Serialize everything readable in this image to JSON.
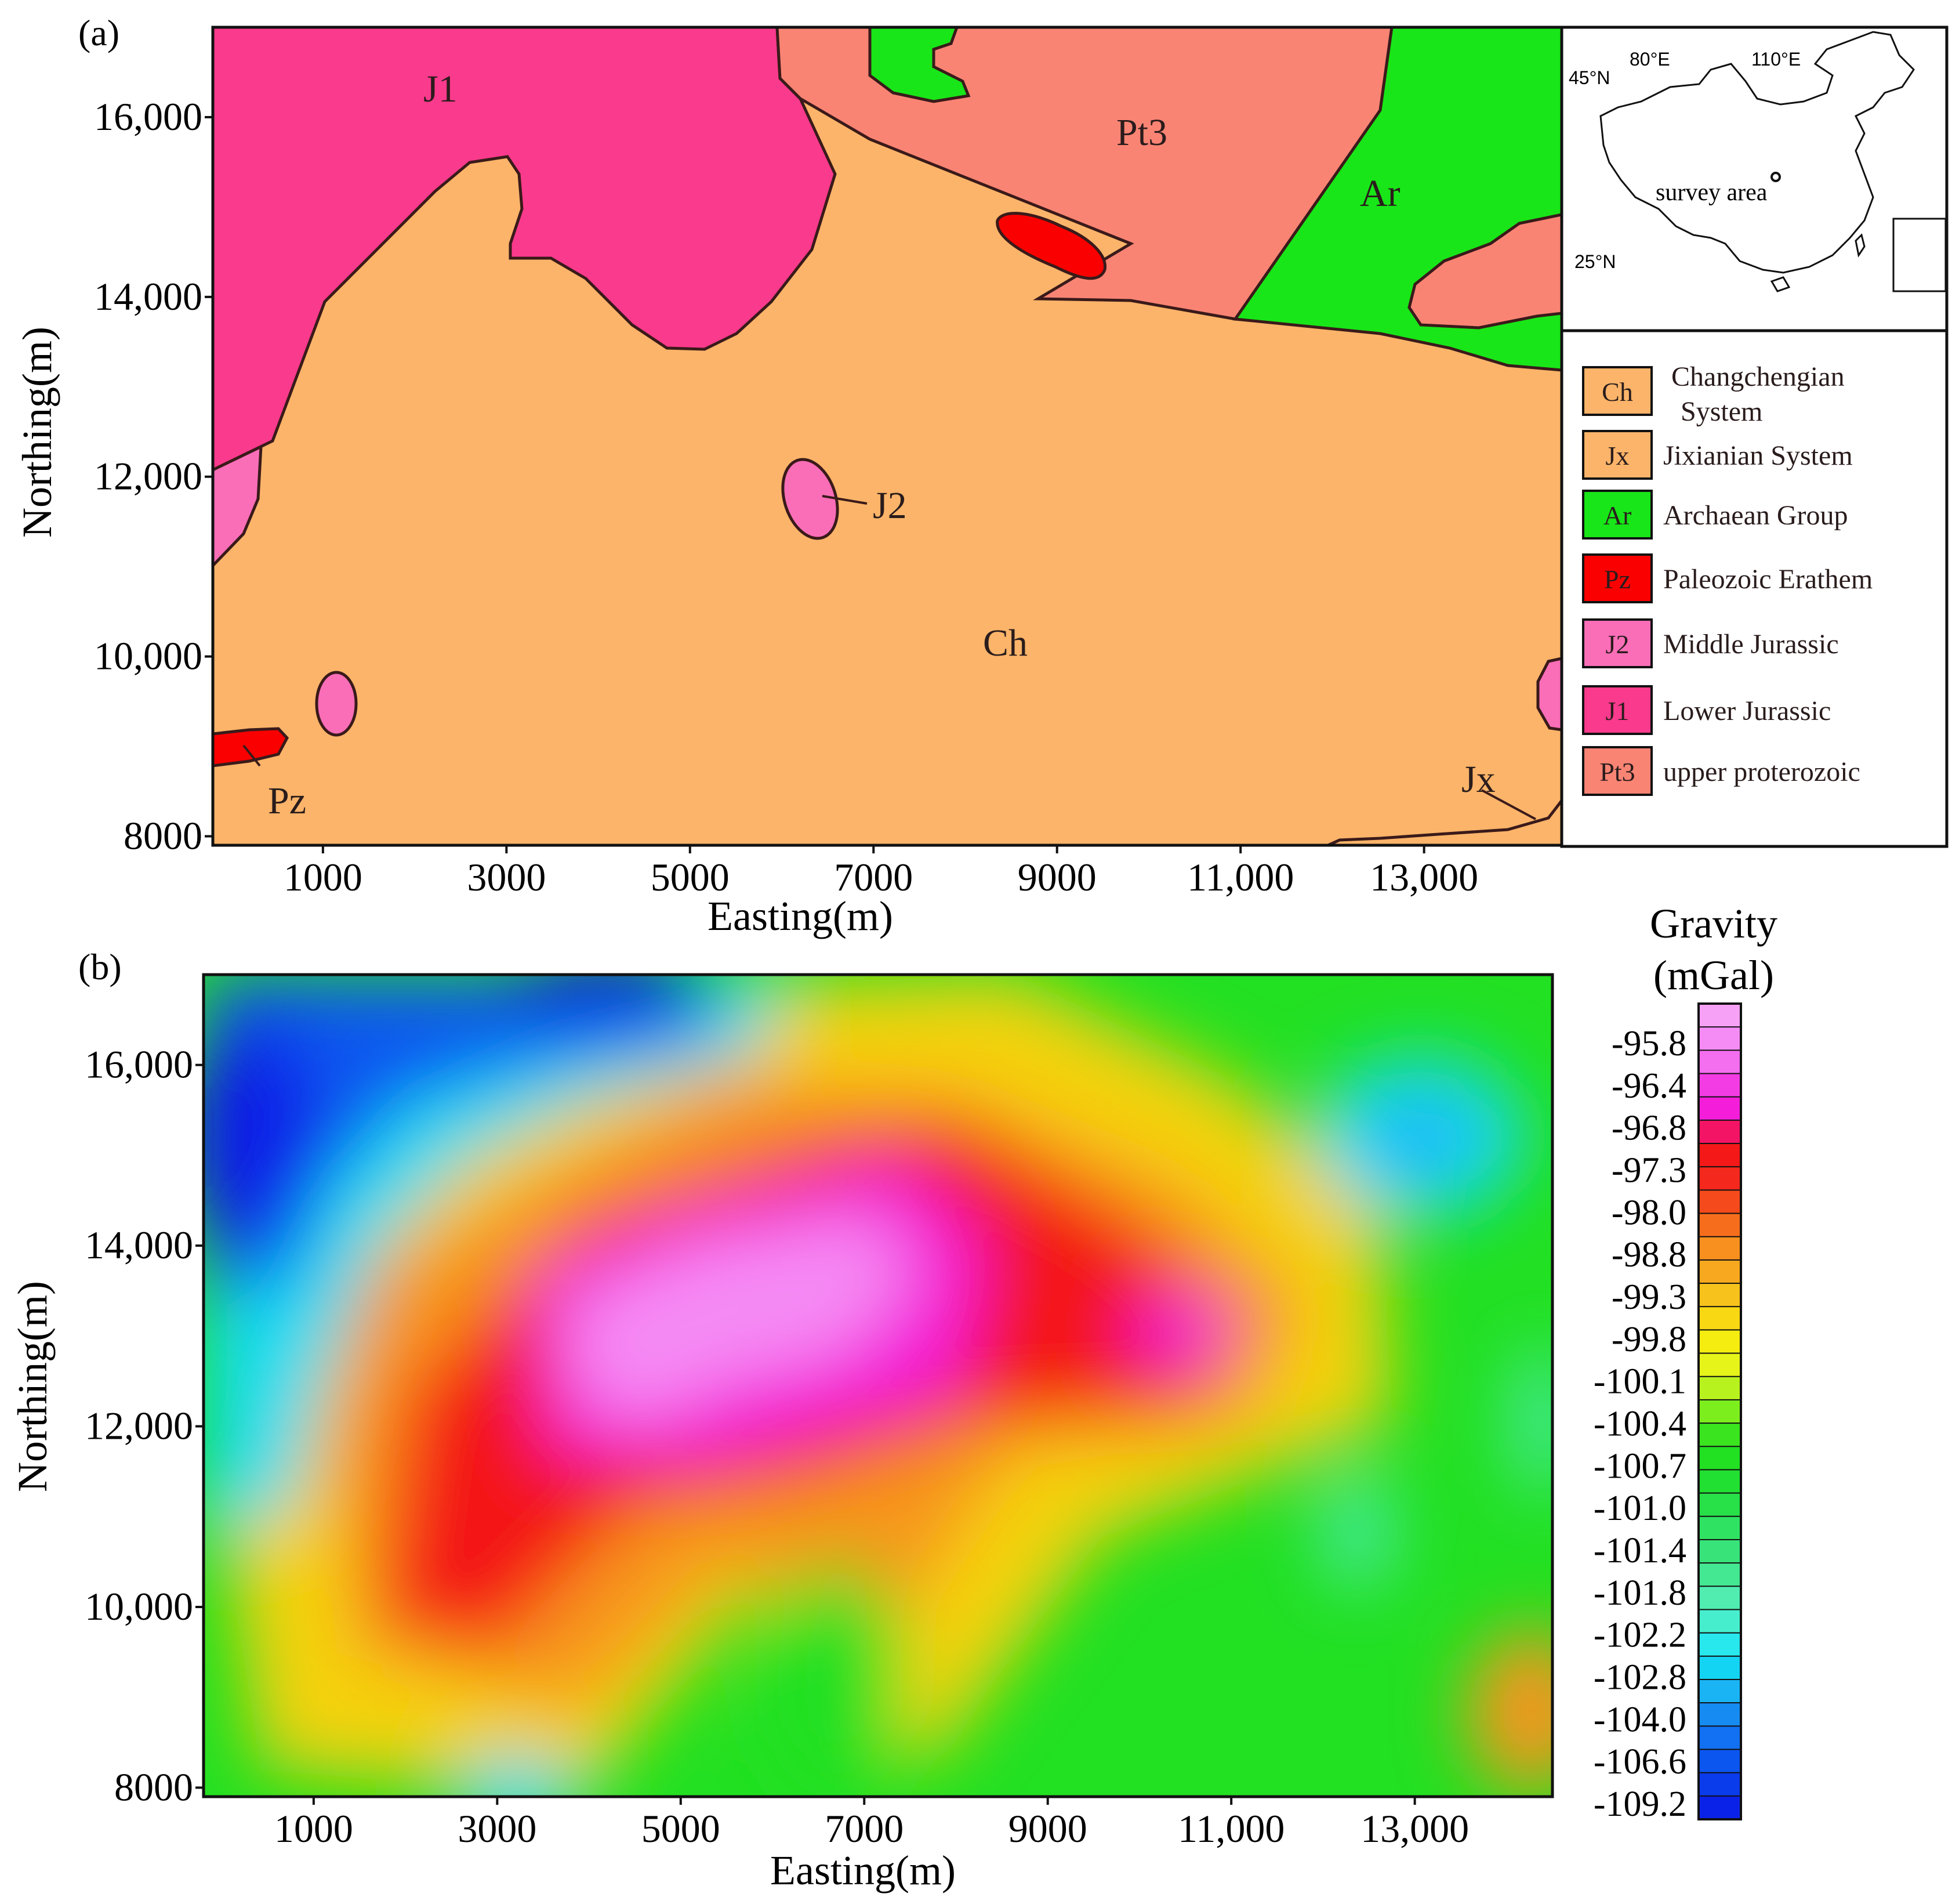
{
  "panel_a": {
    "label": "(a)",
    "x_axis_label": "Easting(m)",
    "y_axis_label": "Northing(m)",
    "x_ticks": [
      "1000",
      "3000",
      "5000",
      "7000",
      "9000",
      "11,000",
      "13,000"
    ],
    "y_ticks": [
      "8000",
      "10,000",
      "12,000",
      "14,000",
      "16,000"
    ],
    "map_labels": {
      "j1": "J1",
      "pt3": "Pt3",
      "ar": "Ar",
      "ch": "Ch",
      "j2": "J2",
      "pz": "Pz",
      "jx": "Jx"
    },
    "inset": {
      "lon_80": "80°E",
      "lon_110": "110°E",
      "lat_45": "45°N",
      "lat_25": "25°N",
      "site_label": "survey area"
    },
    "legend": [
      {
        "code": "Ch",
        "name_line1": "Changchengian",
        "name_line2": "System",
        "color": "#FBB469"
      },
      {
        "code": "Jx",
        "name_line1": "Jixianian System",
        "name_line2": "",
        "color": "#FBB469"
      },
      {
        "code": "Ar",
        "name_line1": "Archaean Group",
        "name_line2": "",
        "color": "#18E618"
      },
      {
        "code": "Pz",
        "name_line1": "Paleozoic Erathem",
        "name_line2": "",
        "color": "#FA0000"
      },
      {
        "code": "J2",
        "name_line1": "Middle Jurassic",
        "name_line2": "",
        "color": "#FA6EB8"
      },
      {
        "code": "J1",
        "name_line1": "Lower Jurassic",
        "name_line2": "",
        "color": "#FA3A8C"
      },
      {
        "code": "Pt3",
        "name_line1": "upper proterozoic",
        "name_line2": "",
        "color": "#FA8474"
      }
    ]
  },
  "panel_b": {
    "label": "(b)",
    "x_axis_label": "Easting(m)",
    "y_axis_label": "Northing(m)",
    "x_ticks": [
      "1000",
      "3000",
      "5000",
      "7000",
      "9000",
      "11,000",
      "13,000"
    ],
    "y_ticks": [
      "8000",
      "10,000",
      "12,000",
      "14,000",
      "16,000"
    ],
    "colorbar_title_line1": "Gravity",
    "colorbar_title_line2": "(mGal)",
    "colorbar_labels": [
      "-95.8",
      "-96.4",
      "-96.8",
      "-97.3",
      "-98.0",
      "-98.8",
      "-99.3",
      "-99.8",
      "-100.1",
      "-100.4",
      "-100.7",
      "-101.0",
      "-101.4",
      "-101.8",
      "-102.2",
      "-102.8",
      "-104.0",
      "-106.6",
      "-109.2"
    ]
  },
  "chart_data": [
    {
      "type": "heatmap",
      "title": "",
      "xlabel": "Easting(m)",
      "ylabel": "Northing(m)",
      "xlim": [
        -200,
        14500
      ],
      "ylim": [
        7900,
        17000
      ],
      "colorbar_label": "Gravity (mGal)",
      "colorbar_levels": [
        -95.8,
        -96.4,
        -96.8,
        -97.3,
        -98.0,
        -98.8,
        -99.3,
        -99.8,
        -100.1,
        -100.4,
        -100.7,
        -101.0,
        -101.4,
        -101.8,
        -102.2,
        -102.8,
        -104.0,
        -106.6,
        -109.2
      ],
      "features": [
        {
          "type": "max",
          "x": 5500,
          "y": 13000,
          "value": -95.6
        },
        {
          "type": "max",
          "x": 10700,
          "y": 13000,
          "value": -96.2
        },
        {
          "type": "min",
          "x": 200,
          "y": 14500,
          "value": -109.2
        },
        {
          "type": "min",
          "x": 4800,
          "y": 16800,
          "value": -109.0
        },
        {
          "type": "min",
          "x": 13700,
          "y": 15500,
          "value": -104.5
        },
        {
          "type": "min",
          "x": 3600,
          "y": 8000,
          "value": -104.0
        }
      ]
    }
  ]
}
